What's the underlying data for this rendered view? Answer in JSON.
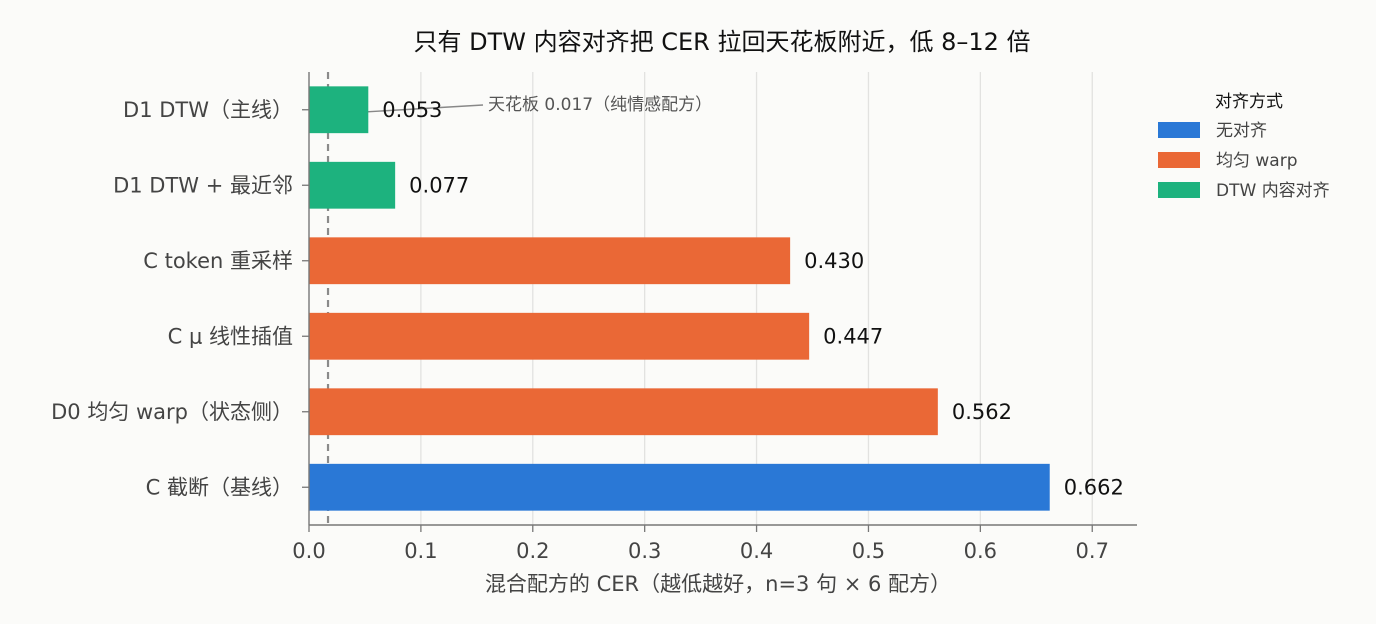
{
  "chart_data": {
    "type": "bar",
    "orientation": "horizontal",
    "title": "只有 DTW 内容对齐把 CER 拉回天花板附近，低 8–12 倍",
    "xlabel": "混合配方的 CER（越低越好，n=3 句 × 6 配方）",
    "xlim": [
      0,
      0.74
    ],
    "xticks": [
      "0.0",
      "0.1",
      "0.2",
      "0.3",
      "0.4",
      "0.5",
      "0.6",
      "0.7"
    ],
    "xtick_values": [
      0,
      0.1,
      0.2,
      0.3,
      0.4,
      0.5,
      0.6,
      0.7
    ],
    "grid": "vertical",
    "categories": [
      "D1 DTW（主线）",
      "D1 DTW + 最近邻",
      "C token 重采样",
      "C μ 线性插值",
      "D0 均匀 warp（状态侧）",
      "C 截断（基线）"
    ],
    "values": [
      0.053,
      0.077,
      0.43,
      0.447,
      0.562,
      0.662
    ],
    "value_labels": [
      "0.053",
      "0.077",
      "0.430",
      "0.447",
      "0.562",
      "0.662"
    ],
    "groups": [
      "DTW 内容对齐",
      "DTW 内容对齐",
      "均匀 warp",
      "均匀 warp",
      "均匀 warp",
      "无对齐"
    ],
    "reference_line": {
      "value": 0.017,
      "label": "天花板 0.017（纯情感配方）",
      "style": "dashed"
    },
    "legend": {
      "title": "对齐方式",
      "placement": "right",
      "entries": [
        {
          "label": "无对齐",
          "color": "#2a78d6"
        },
        {
          "label": "均匀 warp",
          "color": "#ea6836"
        },
        {
          "label": "DTW 内容对齐",
          "color": "#1db27e"
        }
      ]
    }
  }
}
